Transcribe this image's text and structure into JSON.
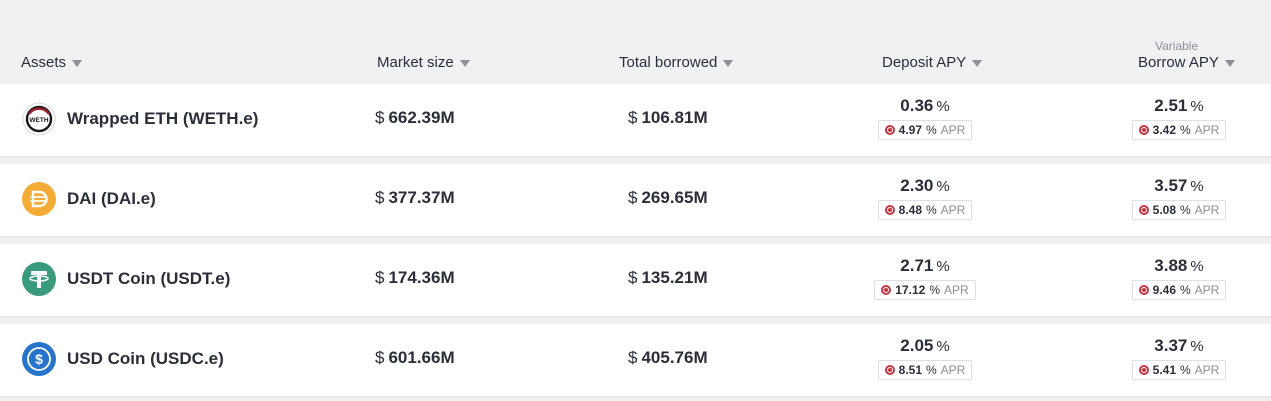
{
  "header": {
    "assets": "Assets",
    "market_size": "Market size",
    "total_borrowed": "Total borrowed",
    "deposit_apy": "Deposit APY",
    "borrow_apy_sub": "Variable",
    "borrow_apy": "Borrow APY"
  },
  "rows": [
    {
      "name": "Wrapped ETH (WETH.e)",
      "icon": "weth-icon",
      "icon_text": "WETH",
      "currency": "$",
      "market_size": "662.39M",
      "total_borrowed": "106.81M",
      "deposit_apy": "0.36",
      "deposit_apr": "4.97",
      "borrow_apy": "2.51",
      "borrow_apr": "3.42"
    },
    {
      "name": "DAI (DAI.e)",
      "icon": "dai-icon",
      "currency": "$",
      "market_size": "377.37M",
      "total_borrowed": "269.65M",
      "deposit_apy": "2.30",
      "deposit_apr": "8.48",
      "borrow_apy": "3.57",
      "borrow_apr": "5.08"
    },
    {
      "name": "USDT Coin (USDT.e)",
      "icon": "tether-icon",
      "currency": "$",
      "market_size": "174.36M",
      "total_borrowed": "135.21M",
      "deposit_apy": "2.71",
      "deposit_apr": "17.12",
      "borrow_apy": "3.88",
      "borrow_apr": "9.46"
    },
    {
      "name": "USD Coin (USDC.e)",
      "icon": "usdc-icon",
      "currency": "$",
      "market_size": "601.66M",
      "total_borrowed": "405.76M",
      "deposit_apy": "2.05",
      "deposit_apr": "8.51",
      "borrow_apy": "3.37",
      "borrow_apr": "5.41"
    }
  ],
  "labels": {
    "percent": "%",
    "apr": "APR"
  },
  "colors": {
    "weth": "#1a1a1a",
    "dai": "#f5ac37",
    "tether": "#3a9a7d",
    "usdc": "#2775ca",
    "reward": "#c43642"
  }
}
